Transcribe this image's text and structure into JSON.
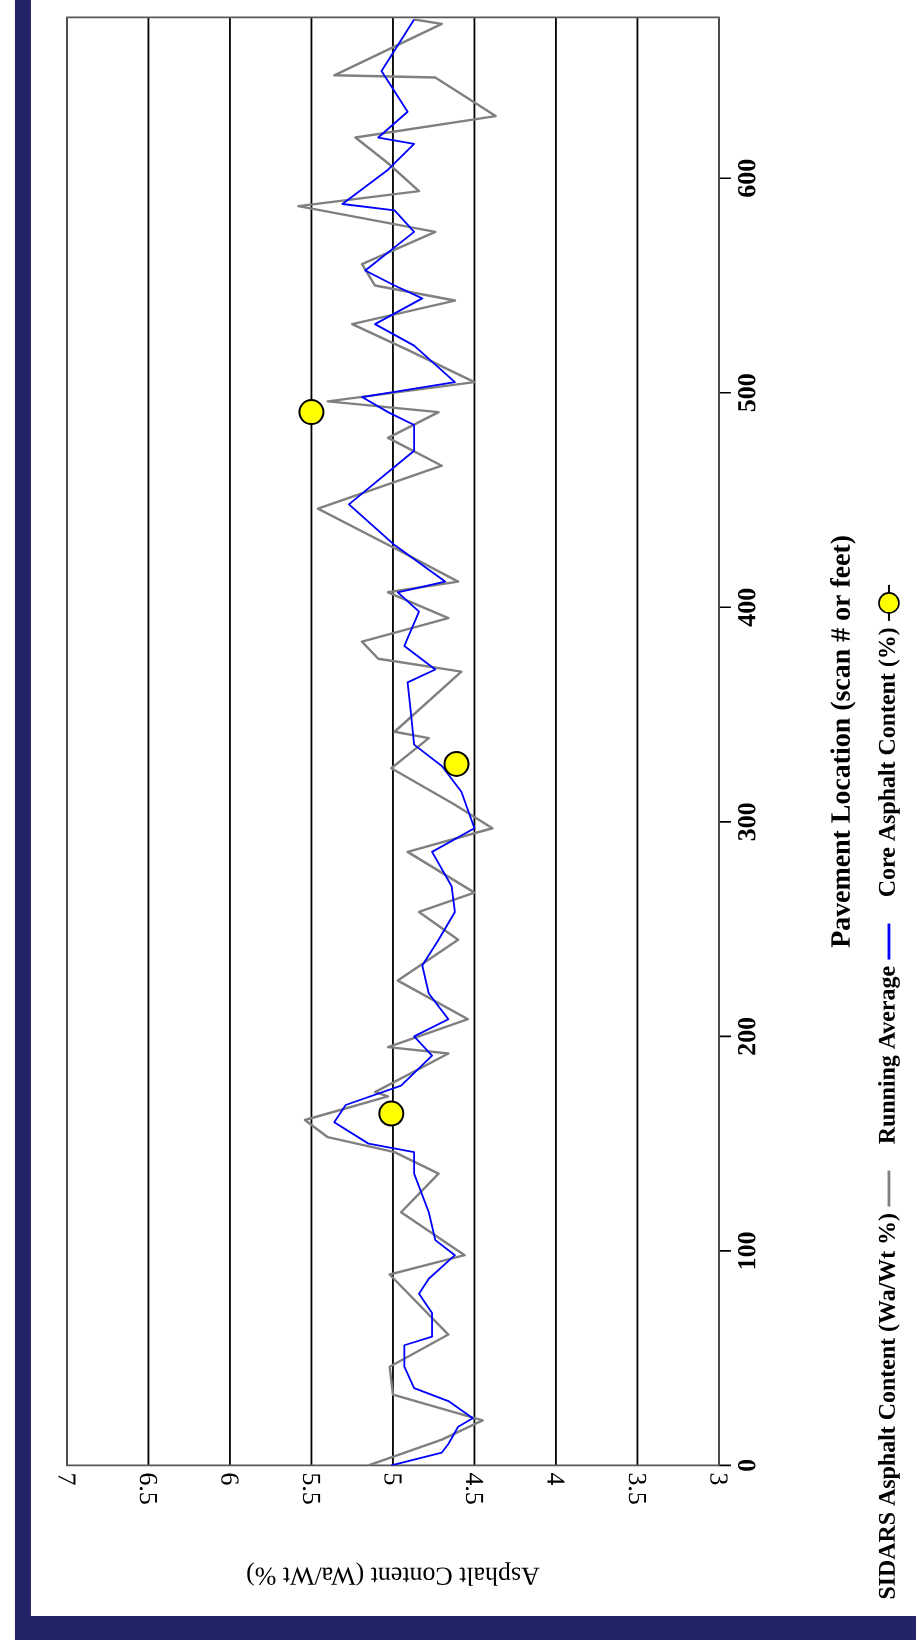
{
  "chart_data": {
    "type": "line",
    "xlabel": "Asphalt Content (Wa/Wt %)",
    "ylabel": "Pavement Location (scan # or feet)",
    "xlim": [
      7,
      3
    ],
    "xticks": [
      7,
      6.5,
      6,
      5.5,
      5,
      4.5,
      4,
      3.5,
      3
    ],
    "ylim": [
      0,
      675
    ],
    "yticks": [
      0,
      100,
      200,
      300,
      400,
      500,
      600
    ],
    "grid": "x",
    "legend": "right",
    "series": [
      {
        "name": "SIDARS Asphalt Content (Wa/Wt %)",
        "type": "line",
        "color": "#808080",
        "values": [
          0,
          12,
          21,
          33,
          46,
          61,
          89,
          98,
          118,
          136,
          146,
          153,
          161,
          172,
          174,
          192,
          195,
          208,
          226,
          245,
          258,
          267,
          286,
          297,
          308,
          325,
          339,
          342,
          370,
          376,
          384,
          395,
          407,
          412,
          426,
          446,
          466,
          479,
          491,
          496,
          505,
          520,
          532,
          543,
          550,
          560,
          575,
          587,
          594,
          607,
          619,
          629,
          647,
          648,
          672,
          674
        ],
        "x": [
          5.15,
          4.7,
          4.45,
          5.0,
          5.02,
          4.66,
          5.02,
          4.56,
          4.95,
          4.72,
          4.99,
          5.4,
          5.54,
          5.03,
          5.11,
          4.66,
          5.03,
          4.54,
          4.97,
          4.6,
          4.84,
          4.5,
          4.91,
          4.39,
          4.62,
          5.01,
          4.78,
          4.99,
          4.58,
          5.09,
          5.19,
          4.66,
          5.03,
          4.6,
          4.95,
          5.46,
          4.7,
          5.03,
          4.72,
          5.4,
          4.5,
          4.91,
          5.25,
          4.62,
          5.11,
          5.19,
          4.74,
          5.58,
          4.84,
          5.03,
          5.23,
          4.37,
          4.74,
          5.36,
          4.7,
          4.87
        ]
      },
      {
        "name": "Running Average",
        "type": "line",
        "color": "#0000ff",
        "values": [
          0,
          6,
          10,
          18,
          22,
          30,
          36,
          46,
          56,
          60,
          71,
          80,
          87,
          98,
          105,
          118,
          136,
          146,
          150,
          160,
          168,
          177,
          191,
          200,
          208,
          220,
          233,
          245,
          258,
          270,
          286,
          297,
          314,
          326,
          336,
          351,
          365,
          371,
          382,
          398,
          407,
          412,
          429,
          448,
          473,
          485,
          491,
          498,
          505,
          522,
          532,
          544,
          550,
          557,
          575,
          585,
          588,
          604,
          616,
          619,
          631,
          650,
          674
        ],
        "x": [
          5.01,
          4.7,
          4.66,
          4.6,
          4.51,
          4.66,
          4.87,
          4.93,
          4.93,
          4.76,
          4.76,
          4.84,
          4.78,
          4.62,
          4.74,
          4.78,
          4.87,
          4.87,
          5.15,
          5.36,
          5.29,
          4.95,
          4.76,
          4.87,
          4.66,
          4.78,
          4.82,
          4.72,
          4.62,
          4.64,
          4.76,
          4.5,
          4.58,
          4.7,
          4.87,
          4.89,
          4.91,
          4.74,
          4.93,
          4.84,
          4.97,
          4.68,
          4.99,
          5.27,
          4.87,
          4.87,
          5.03,
          5.19,
          4.62,
          4.87,
          5.11,
          4.82,
          4.99,
          5.17,
          4.87,
          4.99,
          5.31,
          5.03,
          4.87,
          5.09,
          4.91,
          5.07,
          4.87
        ]
      },
      {
        "name": "Core Asphalt Content (%)",
        "type": "scatter",
        "marker": "circle",
        "color": "#ffff00",
        "values": [
          164,
          327,
          491
        ],
        "x": [
          5.01,
          4.61,
          5.5
        ]
      }
    ]
  }
}
